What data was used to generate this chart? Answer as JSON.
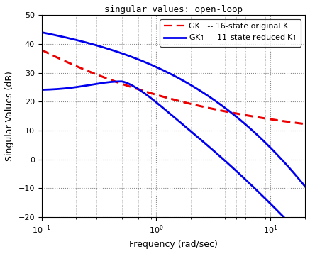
{
  "title": "singular values: open-loop",
  "xlabel": "Frequency (rad/sec)",
  "ylabel": "Singular Values (dB)",
  "xlim": [
    0.1,
    20
  ],
  "ylim": [
    -20,
    50
  ],
  "yticks": [
    -20,
    -10,
    0,
    10,
    20,
    30,
    40,
    50
  ],
  "background_color": "#ffffff",
  "grid_color": "#888888",
  "blue_color": "#0000ee",
  "red_color": "#ee0000",
  "legend_label_blue": "GK$_1$  -- 11-state reduced K$_1$",
  "legend_label_red": "GK   -- 16-state original K",
  "title_fontsize": 9,
  "axis_fontsize": 9,
  "legend_fontsize": 8
}
